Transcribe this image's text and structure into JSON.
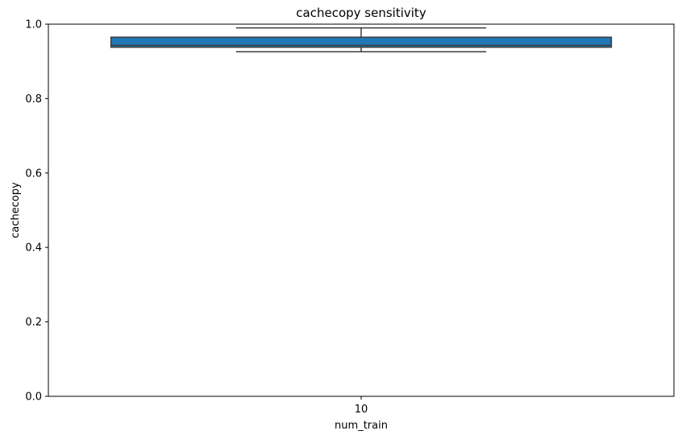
{
  "chart_data": {
    "type": "box",
    "title": "cachecopy sensitivity",
    "xlabel": "num_train",
    "ylabel": "cachecopy",
    "categories": [
      "10"
    ],
    "ylim": [
      0.0,
      1.0
    ],
    "yticks": [
      0.0,
      0.2,
      0.4,
      0.6,
      0.8,
      1.0
    ],
    "ytick_labels": [
      "0.0",
      "0.2",
      "0.4",
      "0.6",
      "0.8",
      "1.0"
    ],
    "grid": false,
    "boxes": [
      {
        "category": "10",
        "whisker_low": 0.926,
        "q1": 0.938,
        "median": 0.943,
        "q3": 0.965,
        "whisker_high": 0.99
      }
    ],
    "colors": {
      "box_fill": "#1f77b4",
      "box_edge": "#3d3d3d",
      "axes": "#000000"
    }
  }
}
